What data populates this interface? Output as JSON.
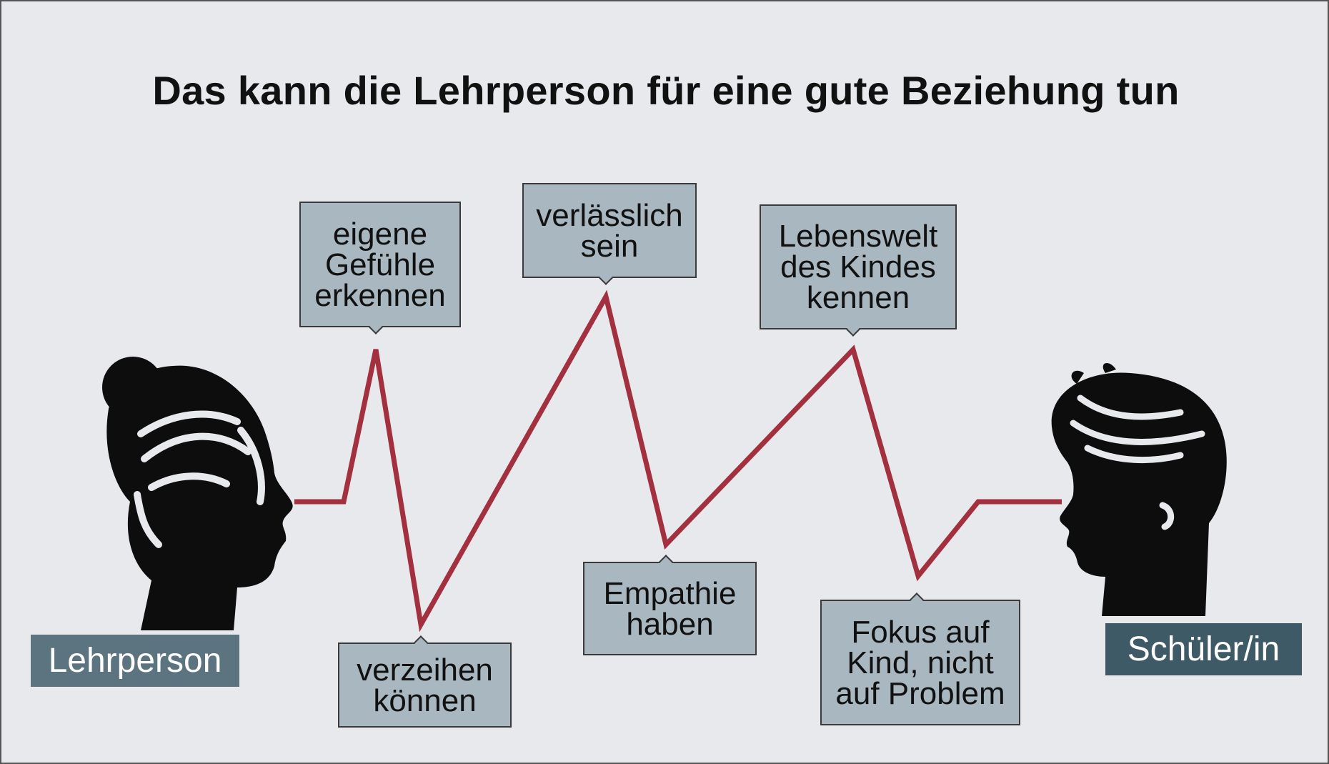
{
  "title": "Das kann die Lehrperson für eine gute Beziehung tun",
  "left_person": {
    "label": "Lehrperson",
    "label_bg": "#5c7480",
    "icon": "woman-head-silhouette-icon"
  },
  "right_person": {
    "label": "Schüler/in",
    "label_bg": "#3e5a66",
    "icon": "child-head-silhouette-icon"
  },
  "line_color": "#a3303e",
  "box_color": "#a9b7c0",
  "boxes": [
    {
      "text": "eigene\nGefühle\nerkennen"
    },
    {
      "text": "verzeihen\nkönnen"
    },
    {
      "text": "verlässlich\nsein"
    },
    {
      "text": "Empathie\nhaben"
    },
    {
      "text": "Lebenswelt\ndes Kindes\nkennen"
    },
    {
      "text": "Fokus auf\nKind, nicht\nauf Problem"
    }
  ]
}
